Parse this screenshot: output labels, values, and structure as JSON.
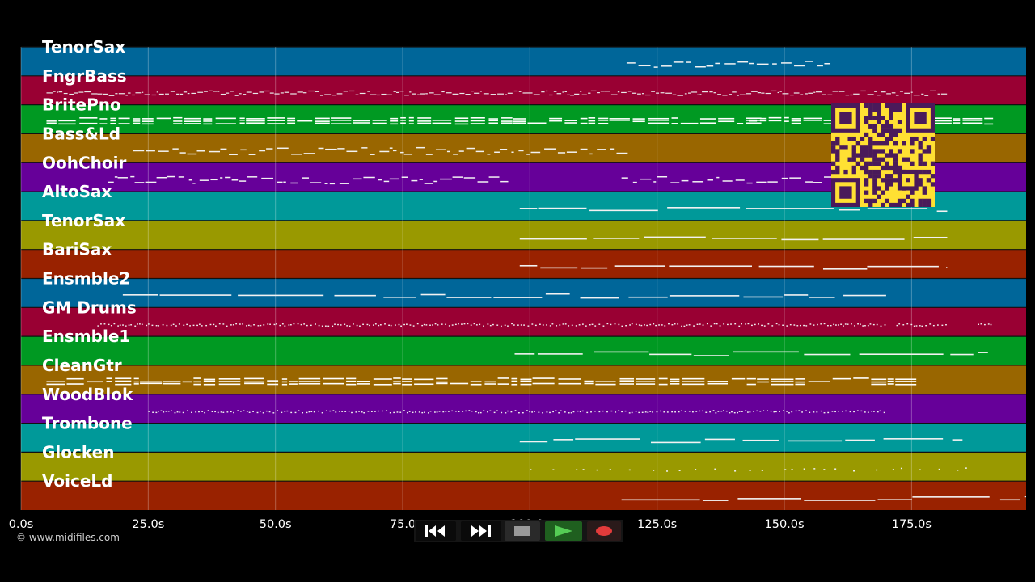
{
  "app": {
    "copyright": "© www.midifiles.com"
  },
  "timeline": {
    "range_seconds": [
      0,
      197.5
    ],
    "tick_values": [
      0,
      25,
      50,
      75,
      100,
      125,
      150,
      175
    ],
    "tick_labels": [
      "0.0s",
      "25.0s",
      "50.0s",
      "75.0",
      "100.0s",
      "125.0s",
      "150.0s",
      "175.0s"
    ],
    "playhead_seconds": 100
  },
  "tracks": [
    {
      "name": "TenorSax",
      "color": "#006699"
    },
    {
      "name": "FngrBass",
      "color": "#990033"
    },
    {
      "name": "BritePno",
      "color": "#009922"
    },
    {
      "name": "Bass&Ld",
      "color": "#996600"
    },
    {
      "name": "OohChoir",
      "color": "#660099"
    },
    {
      "name": "AltoSax",
      "color": "#009999"
    },
    {
      "name": "TenorSax",
      "color": "#999900"
    },
    {
      "name": "BariSax",
      "color": "#992200"
    },
    {
      "name": "Ensmble2",
      "color": "#006699"
    },
    {
      "name": "GM Drums",
      "color": "#990033"
    },
    {
      "name": "Ensmble1",
      "color": "#009922"
    },
    {
      "name": "CleanGtr",
      "color": "#996600"
    },
    {
      "name": "WoodBlok",
      "color": "#660099"
    },
    {
      "name": "Trombone",
      "color": "#009999"
    },
    {
      "name": "Glocken",
      "color": "#999900"
    },
    {
      "name": "VoiceLd",
      "color": "#992200"
    }
  ],
  "note_activity": [
    {
      "segments": [
        [
          119,
          159
        ]
      ],
      "style": "melody"
    },
    {
      "segments": [
        [
          5,
          181
        ]
      ],
      "style": "dense"
    },
    {
      "segments": [
        [
          5,
          143
        ],
        [
          143,
          166
        ],
        [
          166,
          190
        ]
      ],
      "style": "chords"
    },
    {
      "segments": [
        [
          22,
          118
        ]
      ],
      "style": "melody"
    },
    {
      "segments": [
        [
          17,
          95
        ],
        [
          118,
          163
        ]
      ],
      "style": "melody"
    },
    {
      "segments": [
        [
          98,
          182
        ]
      ],
      "style": "line"
    },
    {
      "segments": [
        [
          98,
          182
        ]
      ],
      "style": "line"
    },
    {
      "segments": [
        [
          98,
          182
        ]
      ],
      "style": "line"
    },
    {
      "segments": [
        [
          20,
          170
        ]
      ],
      "style": "line"
    },
    {
      "segments": [
        [
          15,
          170
        ],
        [
          172,
          182
        ],
        [
          188,
          191
        ]
      ],
      "style": "dots"
    },
    {
      "segments": [
        [
          97,
          190
        ]
      ],
      "style": "line"
    },
    {
      "segments": [
        [
          5,
          172
        ]
      ],
      "style": "chords"
    },
    {
      "segments": [
        [
          25,
          170
        ]
      ],
      "style": "dots"
    },
    {
      "segments": [
        [
          98,
          185
        ]
      ],
      "style": "line"
    },
    {
      "segments": [
        [
          100,
          190
        ]
      ],
      "style": "sparse"
    },
    {
      "segments": [
        [
          118,
          197.5
        ]
      ],
      "style": "line"
    }
  ],
  "transport": {
    "rewind": {
      "icon": "rewind-icon"
    },
    "fast_forward": {
      "icon": "fast-forward-icon"
    },
    "stop": {
      "icon": "stop-icon"
    },
    "play": {
      "icon": "play-icon",
      "color": "#55cc55"
    },
    "record": {
      "icon": "record-icon",
      "color": "#e33b3b"
    }
  },
  "qr_code": {
    "colors": {
      "background": "#ffe033",
      "modules": "#4a1a5a"
    }
  }
}
